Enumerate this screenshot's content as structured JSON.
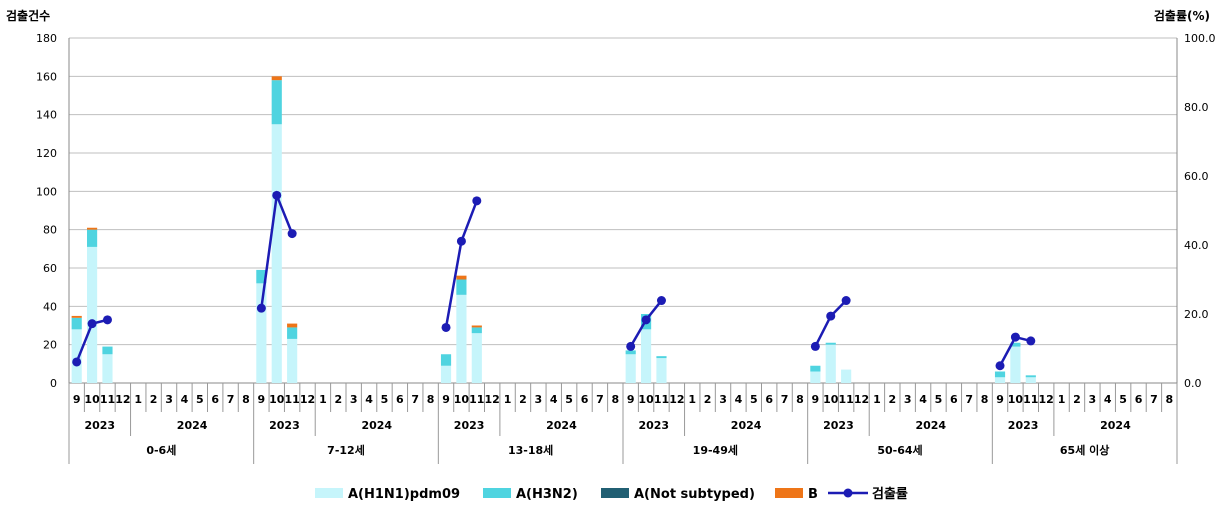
{
  "chart_data": {
    "type": "bar",
    "stacked": true,
    "y_left_label": "검출건수",
    "y_right_label": "검출률(%)",
    "y_left_range": [
      0,
      180
    ],
    "y_left_ticks": [
      "0",
      "20",
      "40",
      "60",
      "80",
      "100",
      "120",
      "140",
      "160",
      "180"
    ],
    "y_right_range": [
      0,
      100
    ],
    "y_right_ticks": [
      "0.0",
      "20.0",
      "40.0",
      "60.0",
      "80.0",
      "100.0"
    ],
    "months": [
      "9",
      "10",
      "11",
      "12",
      "1",
      "2",
      "3",
      "4",
      "5",
      "6",
      "7",
      "8"
    ],
    "years": [
      {
        "label": "2023",
        "months": 4
      },
      {
        "label": "2024",
        "months": 8
      }
    ],
    "groups": [
      "0-6세",
      "7-12세",
      "13-18세",
      "19-49세",
      "50-64세",
      "65세 이상"
    ],
    "series": [
      {
        "name": "A(H1N1)pdm09",
        "color": "#c6f5fb",
        "values": [
          [
            28,
            71,
            15
          ],
          [
            52,
            135,
            23
          ],
          [
            9,
            46,
            26
          ],
          [
            15,
            28,
            13
          ],
          [
            6,
            20,
            7
          ],
          [
            3,
            19,
            3
          ]
        ]
      },
      {
        "name": "A(H3N2)",
        "color": "#4fd4e0",
        "values": [
          [
            6,
            9,
            4
          ],
          [
            7,
            23,
            6
          ],
          [
            6,
            8,
            3
          ],
          [
            2,
            8,
            1
          ],
          [
            3,
            1,
            0
          ],
          [
            3,
            2,
            1
          ]
        ]
      },
      {
        "name": "A(Not subtyped)",
        "color": "#215f73",
        "values": [
          [
            0,
            0,
            0
          ],
          [
            0,
            0,
            0
          ],
          [
            0,
            0,
            0
          ],
          [
            0,
            0,
            0
          ],
          [
            0,
            0,
            0
          ],
          [
            0,
            0,
            0
          ]
        ]
      },
      {
        "name": "B",
        "color": "#ee7518",
        "values": [
          [
            1,
            1,
            0
          ],
          [
            0,
            2,
            2
          ],
          [
            0,
            2,
            1
          ],
          [
            0,
            0,
            0
          ],
          [
            0,
            0,
            0
          ],
          [
            0,
            0,
            0
          ]
        ]
      }
    ],
    "rate": {
      "name": "검출률",
      "color": "#1c1cb4",
      "values": [
        [
          6.1,
          17.2,
          18.3
        ],
        [
          21.7,
          54.4,
          43.3
        ],
        [
          16.1,
          41.1,
          52.8
        ],
        [
          10.6,
          18.3,
          23.9
        ],
        [
          10.6,
          19.4,
          23.9
        ],
        [
          5.0,
          13.3,
          12.2
        ]
      ]
    }
  }
}
